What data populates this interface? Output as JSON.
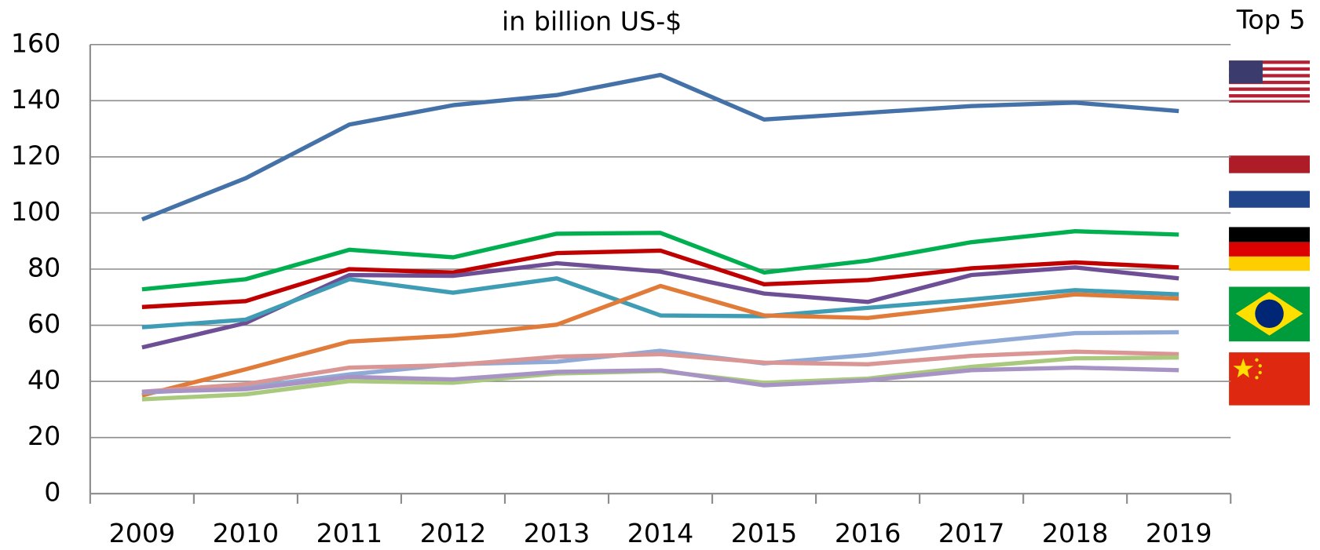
{
  "chart_data": {
    "type": "line",
    "title": "in billion US-$",
    "annotation": "Top 5",
    "categories": [
      "2009",
      "2010",
      "2011",
      "2012",
      "2013",
      "2014",
      "2015",
      "2016",
      "2017",
      "2018",
      "2019"
    ],
    "ylim": [
      0,
      160
    ],
    "yticks": [
      0,
      20,
      40,
      60,
      80,
      100,
      120,
      140,
      160
    ],
    "grid": true,
    "series": [
      {
        "color": "#4472a8",
        "values": [
          97.7,
          112.4,
          131.5,
          138.4,
          142,
          149.2,
          133.3,
          135.7,
          138.1,
          139.3,
          136.3
        ]
      },
      {
        "color": "#00b050",
        "values": [
          72.8,
          76.4,
          86.9,
          84.2,
          92.6,
          92.9,
          78.8,
          83,
          89.6,
          93.5,
          92.3
        ]
      },
      {
        "color": "#c00000",
        "values": [
          66.5,
          68.6,
          80,
          78.8,
          85.7,
          86.6,
          74.6,
          76.1,
          80.3,
          82.4,
          80.6
        ]
      },
      {
        "color": "#6e4f96",
        "values": [
          52.1,
          60.8,
          77.9,
          77.6,
          82.1,
          79.1,
          71.3,
          68.3,
          77.9,
          80.6,
          76.7
        ]
      },
      {
        "color": "#3e9cb5",
        "values": [
          59.3,
          62,
          76.4,
          71.6,
          76.7,
          63.5,
          63.2,
          66.2,
          69.2,
          72.5,
          71
        ]
      },
      {
        "color": "#e07b39",
        "values": [
          35,
          44.3,
          54.2,
          56.3,
          60.2,
          74,
          63.5,
          62.6,
          66.8,
          71,
          69.5
        ]
      },
      {
        "color": "#8faad6",
        "values": [
          36,
          37.8,
          42.5,
          46.1,
          47,
          50.9,
          46.4,
          49.4,
          53.6,
          57.2,
          57.5
        ]
      },
      {
        "color": "#d99694",
        "values": [
          36.3,
          39,
          44.9,
          45.8,
          48.8,
          49.7,
          46.7,
          46.1,
          49.1,
          50.6,
          49.7
        ]
      },
      {
        "color": "#a9c97c",
        "values": [
          33.6,
          35.4,
          40.1,
          39.5,
          42.8,
          43.7,
          39.5,
          41,
          45.2,
          48.2,
          48.5
        ]
      },
      {
        "color": "#a794c4",
        "values": [
          36.3,
          37.2,
          41.6,
          40.7,
          43.4,
          44,
          38.6,
          40.4,
          44,
          44.9,
          44
        ]
      }
    ]
  }
}
